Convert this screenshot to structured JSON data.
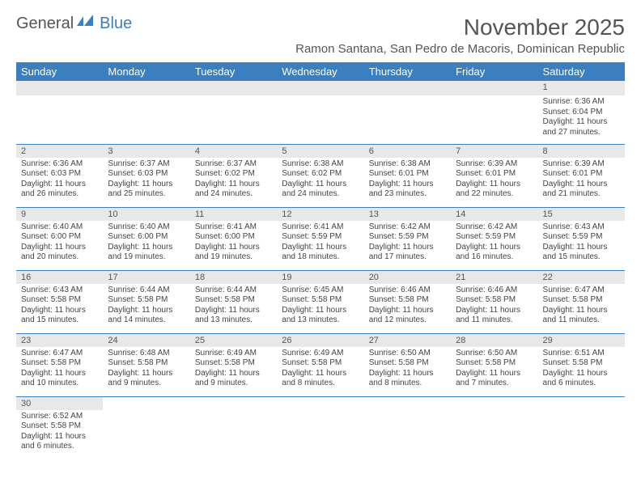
{
  "logo": {
    "part1": "General",
    "part2": "Blue"
  },
  "title": "November 2025",
  "location": "Ramon Santana, San Pedro de Macoris, Dominican Republic",
  "day_headers": [
    "Sunday",
    "Monday",
    "Tuesday",
    "Wednesday",
    "Thursday",
    "Friday",
    "Saturday"
  ],
  "colors": {
    "header_bg": "#3a7fc0",
    "header_fg": "#ffffff",
    "daynum_bg": "#e8e8e8",
    "text": "#444444",
    "title": "#555555",
    "cell_border": "#3a7fc0"
  },
  "weeks": [
    [
      {
        "n": "",
        "sr": "",
        "ss": "",
        "dl": ""
      },
      {
        "n": "",
        "sr": "",
        "ss": "",
        "dl": ""
      },
      {
        "n": "",
        "sr": "",
        "ss": "",
        "dl": ""
      },
      {
        "n": "",
        "sr": "",
        "ss": "",
        "dl": ""
      },
      {
        "n": "",
        "sr": "",
        "ss": "",
        "dl": ""
      },
      {
        "n": "",
        "sr": "",
        "ss": "",
        "dl": ""
      },
      {
        "n": "1",
        "sr": "Sunrise: 6:36 AM",
        "ss": "Sunset: 6:04 PM",
        "dl": "Daylight: 11 hours and 27 minutes."
      }
    ],
    [
      {
        "n": "2",
        "sr": "Sunrise: 6:36 AM",
        "ss": "Sunset: 6:03 PM",
        "dl": "Daylight: 11 hours and 26 minutes."
      },
      {
        "n": "3",
        "sr": "Sunrise: 6:37 AM",
        "ss": "Sunset: 6:03 PM",
        "dl": "Daylight: 11 hours and 25 minutes."
      },
      {
        "n": "4",
        "sr": "Sunrise: 6:37 AM",
        "ss": "Sunset: 6:02 PM",
        "dl": "Daylight: 11 hours and 24 minutes."
      },
      {
        "n": "5",
        "sr": "Sunrise: 6:38 AM",
        "ss": "Sunset: 6:02 PM",
        "dl": "Daylight: 11 hours and 24 minutes."
      },
      {
        "n": "6",
        "sr": "Sunrise: 6:38 AM",
        "ss": "Sunset: 6:01 PM",
        "dl": "Daylight: 11 hours and 23 minutes."
      },
      {
        "n": "7",
        "sr": "Sunrise: 6:39 AM",
        "ss": "Sunset: 6:01 PM",
        "dl": "Daylight: 11 hours and 22 minutes."
      },
      {
        "n": "8",
        "sr": "Sunrise: 6:39 AM",
        "ss": "Sunset: 6:01 PM",
        "dl": "Daylight: 11 hours and 21 minutes."
      }
    ],
    [
      {
        "n": "9",
        "sr": "Sunrise: 6:40 AM",
        "ss": "Sunset: 6:00 PM",
        "dl": "Daylight: 11 hours and 20 minutes."
      },
      {
        "n": "10",
        "sr": "Sunrise: 6:40 AM",
        "ss": "Sunset: 6:00 PM",
        "dl": "Daylight: 11 hours and 19 minutes."
      },
      {
        "n": "11",
        "sr": "Sunrise: 6:41 AM",
        "ss": "Sunset: 6:00 PM",
        "dl": "Daylight: 11 hours and 19 minutes."
      },
      {
        "n": "12",
        "sr": "Sunrise: 6:41 AM",
        "ss": "Sunset: 5:59 PM",
        "dl": "Daylight: 11 hours and 18 minutes."
      },
      {
        "n": "13",
        "sr": "Sunrise: 6:42 AM",
        "ss": "Sunset: 5:59 PM",
        "dl": "Daylight: 11 hours and 17 minutes."
      },
      {
        "n": "14",
        "sr": "Sunrise: 6:42 AM",
        "ss": "Sunset: 5:59 PM",
        "dl": "Daylight: 11 hours and 16 minutes."
      },
      {
        "n": "15",
        "sr": "Sunrise: 6:43 AM",
        "ss": "Sunset: 5:59 PM",
        "dl": "Daylight: 11 hours and 15 minutes."
      }
    ],
    [
      {
        "n": "16",
        "sr": "Sunrise: 6:43 AM",
        "ss": "Sunset: 5:58 PM",
        "dl": "Daylight: 11 hours and 15 minutes."
      },
      {
        "n": "17",
        "sr": "Sunrise: 6:44 AM",
        "ss": "Sunset: 5:58 PM",
        "dl": "Daylight: 11 hours and 14 minutes."
      },
      {
        "n": "18",
        "sr": "Sunrise: 6:44 AM",
        "ss": "Sunset: 5:58 PM",
        "dl": "Daylight: 11 hours and 13 minutes."
      },
      {
        "n": "19",
        "sr": "Sunrise: 6:45 AM",
        "ss": "Sunset: 5:58 PM",
        "dl": "Daylight: 11 hours and 13 minutes."
      },
      {
        "n": "20",
        "sr": "Sunrise: 6:46 AM",
        "ss": "Sunset: 5:58 PM",
        "dl": "Daylight: 11 hours and 12 minutes."
      },
      {
        "n": "21",
        "sr": "Sunrise: 6:46 AM",
        "ss": "Sunset: 5:58 PM",
        "dl": "Daylight: 11 hours and 11 minutes."
      },
      {
        "n": "22",
        "sr": "Sunrise: 6:47 AM",
        "ss": "Sunset: 5:58 PM",
        "dl": "Daylight: 11 hours and 11 minutes."
      }
    ],
    [
      {
        "n": "23",
        "sr": "Sunrise: 6:47 AM",
        "ss": "Sunset: 5:58 PM",
        "dl": "Daylight: 11 hours and 10 minutes."
      },
      {
        "n": "24",
        "sr": "Sunrise: 6:48 AM",
        "ss": "Sunset: 5:58 PM",
        "dl": "Daylight: 11 hours and 9 minutes."
      },
      {
        "n": "25",
        "sr": "Sunrise: 6:49 AM",
        "ss": "Sunset: 5:58 PM",
        "dl": "Daylight: 11 hours and 9 minutes."
      },
      {
        "n": "26",
        "sr": "Sunrise: 6:49 AM",
        "ss": "Sunset: 5:58 PM",
        "dl": "Daylight: 11 hours and 8 minutes."
      },
      {
        "n": "27",
        "sr": "Sunrise: 6:50 AM",
        "ss": "Sunset: 5:58 PM",
        "dl": "Daylight: 11 hours and 8 minutes."
      },
      {
        "n": "28",
        "sr": "Sunrise: 6:50 AM",
        "ss": "Sunset: 5:58 PM",
        "dl": "Daylight: 11 hours and 7 minutes."
      },
      {
        "n": "29",
        "sr": "Sunrise: 6:51 AM",
        "ss": "Sunset: 5:58 PM",
        "dl": "Daylight: 11 hours and 6 minutes."
      }
    ],
    [
      {
        "n": "30",
        "sr": "Sunrise: 6:52 AM",
        "ss": "Sunset: 5:58 PM",
        "dl": "Daylight: 11 hours and 6 minutes."
      },
      {
        "n": "",
        "sr": "",
        "ss": "",
        "dl": ""
      },
      {
        "n": "",
        "sr": "",
        "ss": "",
        "dl": ""
      },
      {
        "n": "",
        "sr": "",
        "ss": "",
        "dl": ""
      },
      {
        "n": "",
        "sr": "",
        "ss": "",
        "dl": ""
      },
      {
        "n": "",
        "sr": "",
        "ss": "",
        "dl": ""
      },
      {
        "n": "",
        "sr": "",
        "ss": "",
        "dl": ""
      }
    ]
  ]
}
